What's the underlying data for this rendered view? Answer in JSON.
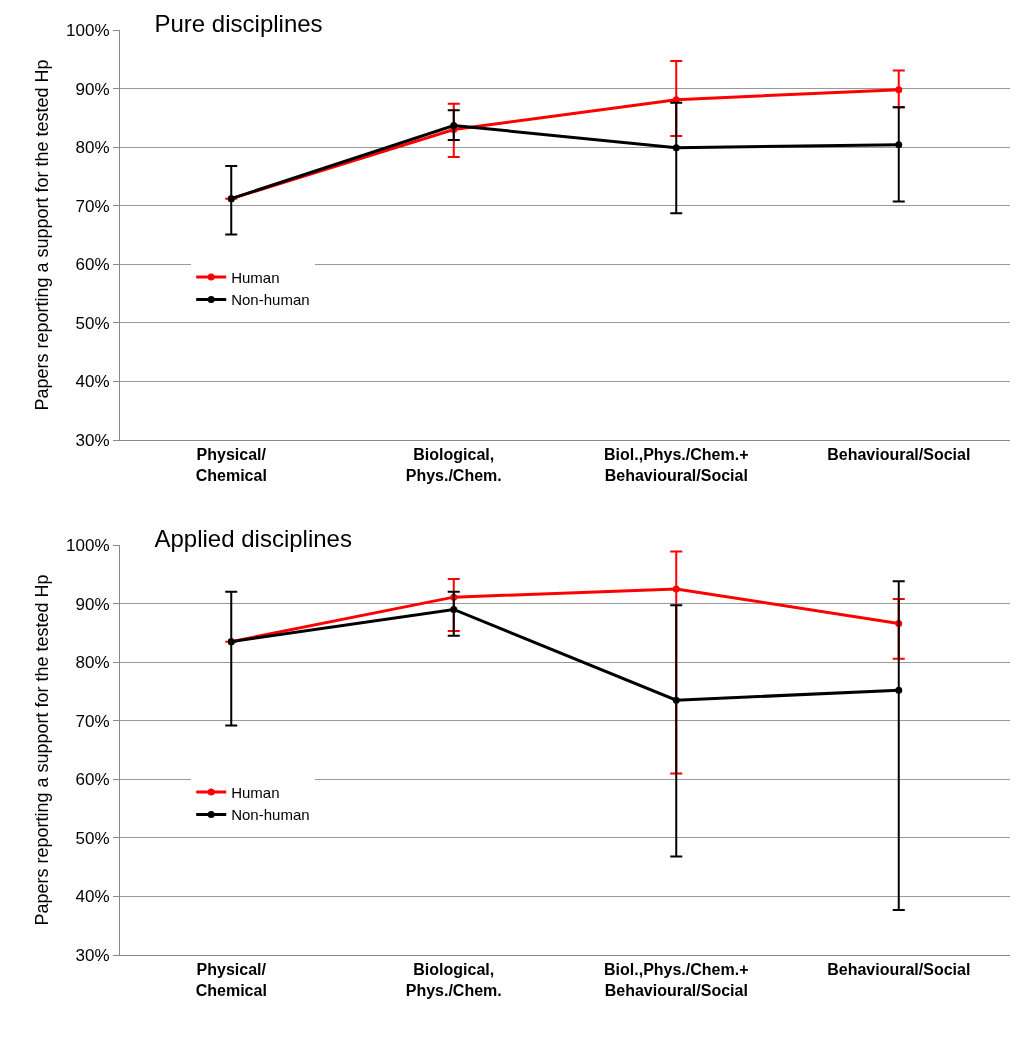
{
  "chart_data": [
    {
      "type": "line",
      "title": "Pure disciplines",
      "ylabel": "Papers reporting a support for the tested Hp",
      "categories": [
        "Physical/\nChemical",
        "Biological,\nPhys./Chem.",
        "Biol.,Phys./Chem.+\nBehavioural/Social",
        "Behavioural/Social"
      ],
      "series": [
        {
          "name": "Human",
          "color": "#ff0000",
          "values": [
            71.2,
            83.0,
            88.1,
            89.8
          ],
          "errors": [
            null,
            [
              78.3,
              87.4
            ],
            [
              81.9,
              94.7
            ],
            [
              86.8,
              93.1
            ]
          ]
        },
        {
          "name": "Non-human",
          "color": "#000000",
          "values": [
            71.2,
            83.7,
            79.9,
            80.4
          ],
          "errors": [
            [
              65.1,
              76.8
            ],
            [
              81.2,
              86.3
            ],
            [
              68.7,
              87.6
            ],
            [
              70.7,
              86.8
            ]
          ]
        }
      ],
      "ylim": [
        30,
        100
      ],
      "yticks": [
        {
          "value": 30,
          "label": "30%"
        },
        {
          "value": 40,
          "label": "40%"
        },
        {
          "value": 50,
          "label": "50%"
        },
        {
          "value": 60,
          "label": "60%"
        },
        {
          "value": 70,
          "label": "70%"
        },
        {
          "value": 80,
          "label": "80%"
        },
        {
          "value": 90,
          "label": "90%"
        },
        {
          "value": 100,
          "label": "100%"
        }
      ],
      "grid": "y",
      "legend": "left",
      "marker": "circle",
      "line_style": "solid"
    },
    {
      "type": "line",
      "title": "Applied disciplines",
      "ylabel": "Papers reporting a support for the tested Hp",
      "categories": [
        "Physical/\nChemical",
        "Biological,\nPhys./Chem.",
        "Biol.,Phys./Chem.+\nBehavioural/Social",
        "Behavioural/Social"
      ],
      "series": [
        {
          "name": "Human",
          "color": "#ff0000",
          "values": [
            83.5,
            91.1,
            92.5,
            86.6
          ],
          "errors": [
            null,
            [
              85.3,
              94.2
            ],
            [
              61.0,
              98.9
            ],
            [
              80.6,
              90.8
            ]
          ]
        },
        {
          "name": "Non-human",
          "color": "#000000",
          "values": [
            83.5,
            89.0,
            73.5,
            75.2
          ],
          "errors": [
            [
              69.2,
              92.0
            ],
            [
              84.5,
              92.0
            ],
            [
              46.8,
              89.7
            ],
            [
              37.7,
              93.8
            ]
          ]
        }
      ],
      "ylim": [
        30,
        100
      ],
      "yticks": [
        {
          "value": 30,
          "label": "30%"
        },
        {
          "value": 40,
          "label": "40%"
        },
        {
          "value": 50,
          "label": "50%"
        },
        {
          "value": 60,
          "label": "60%"
        },
        {
          "value": 70,
          "label": "70%"
        },
        {
          "value": 80,
          "label": "80%"
        },
        {
          "value": 90,
          "label": "90%"
        },
        {
          "value": 100,
          "label": "100%"
        }
      ],
      "grid": "y",
      "legend": "left",
      "marker": "circle",
      "line_style": "solid"
    }
  ]
}
